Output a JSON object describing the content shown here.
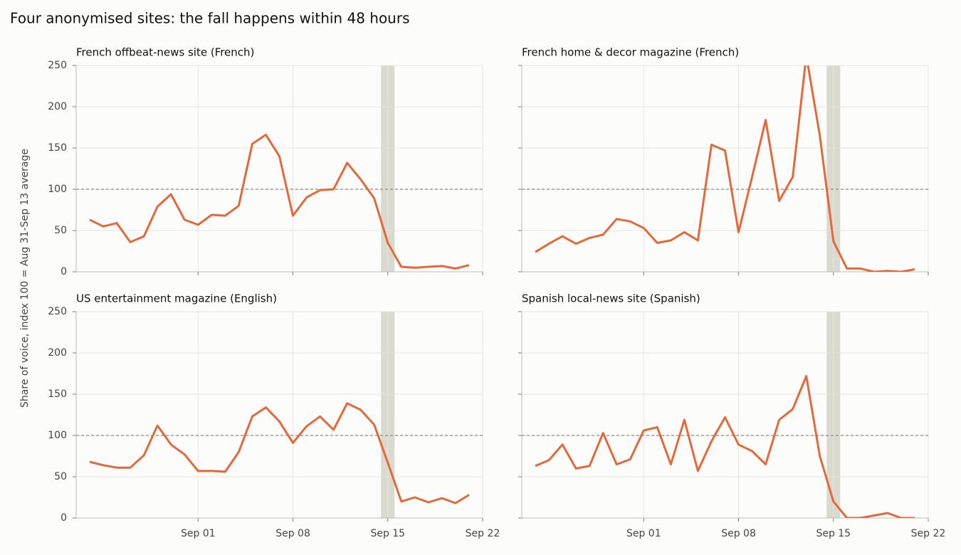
{
  "title": "Four anonymised sites: the fall happens within 48 hours",
  "ylabel": "Share of voice, index 100 = Aug 31-Sep 13 average",
  "chart_data": [
    {
      "type": "line",
      "title": "French offbeat-news site (French)",
      "color": "#e2693a",
      "x": [
        "Aug 24",
        "Aug 25",
        "Aug 26",
        "Aug 27",
        "Aug 28",
        "Aug 29",
        "Aug 30",
        "Aug 31",
        "Sep 01",
        "Sep 02",
        "Sep 03",
        "Sep 04",
        "Sep 05",
        "Sep 06",
        "Sep 07",
        "Sep 08",
        "Sep 09",
        "Sep 10",
        "Sep 11",
        "Sep 12",
        "Sep 13",
        "Sep 14",
        "Sep 15",
        "Sep 16",
        "Sep 17",
        "Sep 18",
        "Sep 19",
        "Sep 20",
        "Sep 21"
      ],
      "values": [
        63,
        55,
        59,
        36,
        43,
        79,
        94,
        63,
        57,
        69,
        68,
        80,
        155,
        166,
        140,
        68,
        90,
        99,
        100,
        132,
        112,
        89,
        35,
        6,
        5,
        6,
        7,
        4,
        8
      ],
      "xlim": [
        "Aug 23",
        "Sep 22"
      ],
      "xticks": [
        "Sep 01",
        "Sep 08",
        "Sep 15",
        "Sep 22"
      ],
      "ylim": [
        0,
        250
      ],
      "yticks": [
        0,
        50,
        100,
        150,
        200,
        250
      ],
      "reference_line": 100,
      "highlight": "Sep 15",
      "grid": true
    },
    {
      "type": "line",
      "title": "French home & decor magazine (French)",
      "color": "#e2693a",
      "x": [
        "Aug 24",
        "Aug 25",
        "Aug 26",
        "Aug 27",
        "Aug 28",
        "Aug 29",
        "Aug 30",
        "Aug 31",
        "Sep 01",
        "Sep 02",
        "Sep 03",
        "Sep 04",
        "Sep 05",
        "Sep 06",
        "Sep 07",
        "Sep 08",
        "Sep 09",
        "Sep 10",
        "Sep 11",
        "Sep 12",
        "Sep 13",
        "Sep 14",
        "Sep 15",
        "Sep 16",
        "Sep 17",
        "Sep 18",
        "Sep 19",
        "Sep 20",
        "Sep 21"
      ],
      "values": [
        24,
        34,
        43,
        34,
        41,
        45,
        64,
        61,
        53,
        35,
        38,
        48,
        38,
        154,
        147,
        48,
        115,
        184,
        86,
        115,
        262,
        165,
        37,
        4,
        4,
        0,
        1,
        0,
        3
      ],
      "xlim": [
        "Aug 23",
        "Sep 22"
      ],
      "xticks": [
        "Sep 01",
        "Sep 08",
        "Sep 15",
        "Sep 22"
      ],
      "ylim": [
        0,
        250
      ],
      "yticks": [
        0,
        50,
        100,
        150,
        200,
        250
      ],
      "reference_line": 100,
      "highlight": "Sep 15",
      "grid": true
    },
    {
      "type": "line",
      "title": "US entertainment magazine (English)",
      "color": "#e2693a",
      "x": [
        "Aug 24",
        "Aug 25",
        "Aug 26",
        "Aug 27",
        "Aug 28",
        "Aug 29",
        "Aug 30",
        "Aug 31",
        "Sep 01",
        "Sep 02",
        "Sep 03",
        "Sep 04",
        "Sep 05",
        "Sep 06",
        "Sep 07",
        "Sep 08",
        "Sep 09",
        "Sep 10",
        "Sep 11",
        "Sep 12",
        "Sep 13",
        "Sep 14",
        "Sep 15",
        "Sep 16",
        "Sep 17",
        "Sep 18",
        "Sep 19",
        "Sep 20",
        "Sep 21"
      ],
      "values": [
        68,
        64,
        61,
        61,
        76,
        112,
        89,
        77,
        57,
        57,
        56,
        80,
        123,
        134,
        117,
        91,
        111,
        123,
        107,
        139,
        131,
        113,
        67,
        20,
        25,
        19,
        24,
        18,
        28
      ],
      "xlim": [
        "Aug 23",
        "Sep 22"
      ],
      "xticks": [
        "Sep 01",
        "Sep 08",
        "Sep 15",
        "Sep 22"
      ],
      "ylim": [
        0,
        250
      ],
      "yticks": [
        0,
        50,
        100,
        150,
        200,
        250
      ],
      "reference_line": 100,
      "highlight": "Sep 15",
      "grid": true
    },
    {
      "type": "line",
      "title": "Spanish local-news site (Spanish)",
      "color": "#e2693a",
      "x": [
        "Aug 24",
        "Aug 25",
        "Aug 26",
        "Aug 27",
        "Aug 28",
        "Aug 29",
        "Aug 30",
        "Aug 31",
        "Sep 01",
        "Sep 02",
        "Sep 03",
        "Sep 04",
        "Sep 05",
        "Sep 06",
        "Sep 07",
        "Sep 08",
        "Sep 09",
        "Sep 10",
        "Sep 11",
        "Sep 12",
        "Sep 13",
        "Sep 14",
        "Sep 15",
        "Sep 16",
        "Sep 17",
        "Sep 18",
        "Sep 19",
        "Sep 20",
        "Sep 21"
      ],
      "values": [
        63,
        70,
        89,
        60,
        63,
        103,
        65,
        71,
        106,
        110,
        65,
        119,
        57,
        93,
        122,
        89,
        81,
        65,
        119,
        132,
        172,
        75,
        20,
        0,
        0,
        3,
        6,
        0,
        0
      ],
      "xlim": [
        "Aug 23",
        "Sep 22"
      ],
      "xticks": [
        "Sep 01",
        "Sep 08",
        "Sep 15",
        "Sep 22"
      ],
      "ylim": [
        0,
        250
      ],
      "yticks": [
        0,
        50,
        100,
        150,
        200,
        250
      ],
      "reference_line": 100,
      "highlight": "Sep 15",
      "grid": true
    }
  ]
}
